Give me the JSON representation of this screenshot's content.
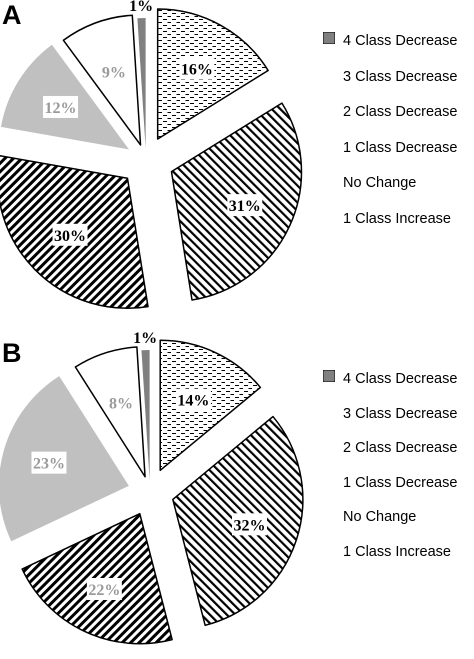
{
  "chart_data": [
    {
      "type": "pie",
      "panel_label": "A",
      "labels": [
        "4 Class Decrease",
        "3 Class Decrease",
        "2 Class Decrease",
        "1 Class Decrease",
        "No Change",
        "1 Class Increase"
      ],
      "values": [
        16,
        31,
        30,
        12,
        9,
        1
      ],
      "value_labels": [
        "16%",
        "31%",
        "30%",
        "12%",
        "9%",
        "1%"
      ],
      "exploded": true,
      "legend": "right"
    },
    {
      "type": "pie",
      "panel_label": "B",
      "labels": [
        "4 Class Decrease",
        "3 Class Decrease",
        "2 Class Decrease",
        "1 Class Decrease",
        "No Change",
        "1 Class Increase"
      ],
      "values": [
        14,
        32,
        22,
        23,
        8,
        1
      ],
      "value_labels": [
        "14%",
        "32%",
        "22%",
        "23%",
        "8%",
        "1%"
      ],
      "exploded": true,
      "legend": "right"
    }
  ],
  "series_styles": [
    {
      "fill": "#ffffff",
      "pattern": "dashes",
      "stroke": "#000000"
    },
    {
      "fill": "#ffffff",
      "pattern": "diagonal-thin",
      "stroke": "#000000"
    },
    {
      "fill": "#ffffff",
      "pattern": "diagonal-thick",
      "stroke": "#000000"
    },
    {
      "fill": "#c0c0c0",
      "pattern": "solid",
      "stroke": "#ffffff"
    },
    {
      "fill": "#ffffff",
      "pattern": "solid",
      "stroke": "#000000"
    },
    {
      "fill": "#808080",
      "pattern": "solid",
      "stroke": "#ffffff"
    }
  ],
  "label_colors": {
    "dark": "#000000",
    "light": "#9a9a9a"
  }
}
